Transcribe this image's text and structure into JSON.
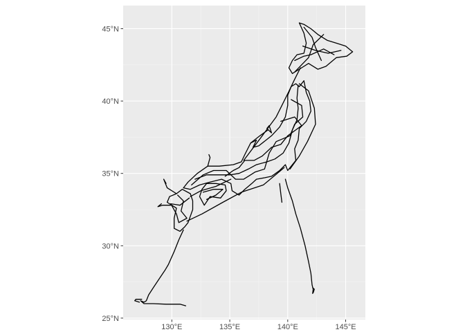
{
  "chart_data": {
    "type": "map",
    "title": "",
    "xlabel": "",
    "ylabel": "",
    "grid": true,
    "xlim": [
      125.8,
      146.7
    ],
    "ylim": [
      24.9,
      46.6
    ],
    "x_ticks": [
      {
        "value": 130,
        "label": "130°E"
      },
      {
        "value": 135,
        "label": "135°E"
      },
      {
        "value": 140,
        "label": "140°E"
      },
      {
        "value": 145,
        "label": "145°E"
      }
    ],
    "y_ticks": [
      {
        "value": 25,
        "label": "25°N"
      },
      {
        "value": 30,
        "label": "30°N"
      },
      {
        "value": 35,
        "label": "35°N"
      },
      {
        "value": 40,
        "label": "40°N"
      },
      {
        "value": 45,
        "label": "45°N"
      }
    ],
    "colors": {
      "panel": "#ebebeb",
      "grid_major": "#ffffff",
      "line": "#000000"
    },
    "series": [
      {
        "part": "hokkaido",
        "points": [
          [
            141.0,
            45.4
          ],
          [
            141.4,
            45.3
          ],
          [
            142.0,
            45.0
          ],
          [
            142.6,
            44.6
          ],
          [
            143.4,
            44.2
          ],
          [
            144.2,
            44.0
          ],
          [
            145.0,
            43.8
          ],
          [
            145.6,
            43.4
          ],
          [
            145.1,
            43.1
          ],
          [
            144.2,
            43.0
          ],
          [
            143.3,
            42.4
          ],
          [
            142.6,
            42.2
          ],
          [
            141.8,
            42.6
          ],
          [
            141.2,
            42.3
          ],
          [
            140.4,
            41.9
          ],
          [
            140.1,
            42.3
          ],
          [
            140.4,
            42.8
          ],
          [
            140.8,
            43.2
          ],
          [
            141.4,
            43.3
          ],
          [
            141.6,
            44.0
          ],
          [
            141.4,
            44.7
          ],
          [
            141.0,
            45.4
          ]
        ]
      },
      {
        "part": "hokkaido-inner-1",
        "points": [
          [
            141.3,
            43.8
          ],
          [
            142.4,
            43.5
          ],
          [
            143.5,
            43.3
          ],
          [
            144.6,
            43.5
          ]
        ]
      },
      {
        "part": "hokkaido-inner-2",
        "points": [
          [
            141.4,
            45.1
          ],
          [
            142.1,
            44.4
          ],
          [
            142.4,
            43.7
          ],
          [
            142.9,
            42.8
          ]
        ]
      },
      {
        "part": "hokkaido-inner-3",
        "points": [
          [
            140.6,
            42.8
          ],
          [
            141.4,
            43.1
          ],
          [
            142.0,
            43.2
          ],
          [
            143.1,
            43.6
          ],
          [
            144.0,
            43.2
          ]
        ]
      },
      {
        "part": "honshu-north-east-coast",
        "points": [
          [
            141.4,
            41.4
          ],
          [
            141.6,
            40.6
          ],
          [
            141.9,
            40.0
          ],
          [
            142.0,
            39.3
          ],
          [
            141.6,
            38.6
          ],
          [
            141.0,
            38.1
          ],
          [
            140.9,
            37.3
          ],
          [
            140.6,
            36.7
          ],
          [
            140.7,
            35.9
          ],
          [
            140.0,
            35.2
          ],
          [
            139.8,
            35.6
          ],
          [
            139.3,
            35.2
          ],
          [
            138.6,
            34.8
          ],
          [
            138.0,
            34.7
          ],
          [
            137.3,
            34.6
          ],
          [
            136.9,
            34.3
          ],
          [
            136.3,
            33.9
          ],
          [
            135.8,
            33.5
          ],
          [
            135.2,
            33.8
          ],
          [
            135.1,
            34.3
          ],
          [
            134.3,
            34.6
          ],
          [
            133.3,
            34.4
          ],
          [
            132.4,
            34.2
          ],
          [
            131.6,
            33.9
          ],
          [
            131.0,
            34.0
          ]
        ]
      },
      {
        "part": "honshu-west-coast",
        "points": [
          [
            131.0,
            34.0
          ],
          [
            131.4,
            34.4
          ],
          [
            132.2,
            35.0
          ],
          [
            133.1,
            35.5
          ],
          [
            134.1,
            35.5
          ],
          [
            135.3,
            35.6
          ],
          [
            136.0,
            35.8
          ],
          [
            136.3,
            36.3
          ],
          [
            136.8,
            37.1
          ],
          [
            137.3,
            37.3
          ],
          [
            137.0,
            36.8
          ],
          [
            137.5,
            36.9
          ],
          [
            138.6,
            37.6
          ],
          [
            139.3,
            38.2
          ],
          [
            139.8,
            38.9
          ],
          [
            140.0,
            39.7
          ],
          [
            140.0,
            40.4
          ],
          [
            140.3,
            41.0
          ],
          [
            140.7,
            41.2
          ],
          [
            141.0,
            41.0
          ],
          [
            141.4,
            41.4
          ]
        ]
      },
      {
        "part": "honshu-inner-1",
        "points": [
          [
            140.9,
            41.1
          ],
          [
            140.8,
            40.2
          ],
          [
            140.9,
            39.5
          ],
          [
            140.8,
            38.7
          ],
          [
            140.4,
            38.0
          ],
          [
            140.1,
            37.1
          ],
          [
            139.6,
            36.4
          ],
          [
            138.9,
            36.0
          ],
          [
            138.2,
            35.8
          ],
          [
            137.3,
            35.6
          ],
          [
            136.6,
            35.3
          ],
          [
            135.8,
            35.0
          ],
          [
            135.0,
            34.9
          ],
          [
            134.0,
            34.9
          ],
          [
            133.0,
            34.9
          ],
          [
            132.0,
            34.6
          ]
        ]
      },
      {
        "part": "honshu-inner-2",
        "points": [
          [
            140.3,
            40.1
          ],
          [
            141.2,
            39.7
          ],
          [
            141.3,
            38.9
          ],
          [
            140.6,
            38.4
          ],
          [
            140.2,
            37.6
          ],
          [
            139.0,
            37.2
          ],
          [
            138.4,
            36.4
          ],
          [
            138.0,
            35.3
          ],
          [
            137.2,
            35.1
          ],
          [
            136.2,
            34.6
          ],
          [
            135.5,
            34.6
          ],
          [
            134.7,
            35.2
          ],
          [
            133.6,
            35.2
          ],
          [
            132.7,
            34.9
          ],
          [
            131.7,
            34.2
          ]
        ]
      },
      {
        "part": "honshu-inner-3",
        "points": [
          [
            139.4,
            38.6
          ],
          [
            140.6,
            38.9
          ],
          [
            141.2,
            38.3
          ],
          [
            140.0,
            37.6
          ],
          [
            139.4,
            37.0
          ],
          [
            138.6,
            36.8
          ],
          [
            137.8,
            36.2
          ],
          [
            137.1,
            35.9
          ],
          [
            136.3,
            35.9
          ],
          [
            135.8,
            35.4
          ],
          [
            135.3,
            35.2
          ],
          [
            134.6,
            34.8
          ]
        ]
      },
      {
        "part": "shikoku",
        "points": [
          [
            132.6,
            33.9
          ],
          [
            133.0,
            34.3
          ],
          [
            133.8,
            34.3
          ],
          [
            134.6,
            34.2
          ],
          [
            134.7,
            33.8
          ],
          [
            134.2,
            33.3
          ],
          [
            133.3,
            33.4
          ],
          [
            132.8,
            32.8
          ],
          [
            132.4,
            33.4
          ],
          [
            132.6,
            33.9
          ]
        ]
      },
      {
        "part": "shikoku-inner",
        "points": [
          [
            132.7,
            33.7
          ],
          [
            133.6,
            33.9
          ],
          [
            134.4,
            33.9
          ],
          [
            133.8,
            33.5
          ],
          [
            133.0,
            33.2
          ]
        ]
      },
      {
        "part": "kyushu",
        "points": [
          [
            130.9,
            33.9
          ],
          [
            131.6,
            33.6
          ],
          [
            131.8,
            33.1
          ],
          [
            131.8,
            32.5
          ],
          [
            131.4,
            31.6
          ],
          [
            131.1,
            31.3
          ],
          [
            130.7,
            31.0
          ],
          [
            130.2,
            31.2
          ],
          [
            130.2,
            31.9
          ],
          [
            130.4,
            32.6
          ],
          [
            130.0,
            32.8
          ],
          [
            129.6,
            33.0
          ],
          [
            129.8,
            33.4
          ],
          [
            130.4,
            33.6
          ],
          [
            130.9,
            33.9
          ]
        ]
      },
      {
        "part": "kyushu-inner",
        "points": [
          [
            130.5,
            33.5
          ],
          [
            131.0,
            33.1
          ],
          [
            130.8,
            32.4
          ],
          [
            131.3,
            31.9
          ],
          [
            130.6,
            31.6
          ],
          [
            130.4,
            32.2
          ],
          [
            129.9,
            32.9
          ],
          [
            130.7,
            32.8
          ],
          [
            131.5,
            33.3
          ]
        ]
      },
      {
        "part": "okinawa-chain",
        "points": [
          [
            131.0,
            31.1
          ],
          [
            130.6,
            30.4
          ],
          [
            130.2,
            29.6
          ],
          [
            129.7,
            28.7
          ],
          [
            129.4,
            28.3
          ],
          [
            128.9,
            27.7
          ],
          [
            128.4,
            27.1
          ],
          [
            128.0,
            26.6
          ],
          [
            127.8,
            26.2
          ],
          [
            127.6,
            26.1
          ],
          [
            127.3,
            26.2
          ],
          [
            127.6,
            26.0
          ],
          [
            128.4,
            26.0
          ],
          [
            129.5,
            25.96
          ],
          [
            130.7,
            25.96
          ],
          [
            131.2,
            25.85
          ]
        ]
      },
      {
        "part": "western-islands",
        "points": [
          [
            127.2,
            26.1
          ],
          [
            126.8,
            26.2
          ],
          [
            126.9,
            26.3
          ],
          [
            127.4,
            26.3
          ]
        ]
      },
      {
        "part": "izu-chain",
        "points": [
          [
            139.8,
            34.6
          ],
          [
            140.0,
            34.0
          ],
          [
            140.4,
            33.1
          ],
          [
            140.7,
            32.2
          ],
          [
            141.1,
            31.2
          ],
          [
            141.5,
            30.0
          ],
          [
            141.8,
            28.9
          ],
          [
            142.0,
            28.1
          ],
          [
            142.1,
            27.3
          ],
          [
            142.2,
            27.0
          ],
          [
            142.15,
            26.7
          ]
        ]
      },
      {
        "part": "ogasawara-hook",
        "points": [
          [
            142.15,
            27.1
          ],
          [
            142.3,
            27.0
          ],
          [
            142.2,
            26.75
          ]
        ]
      },
      {
        "part": "izu-spur",
        "points": [
          [
            139.3,
            34.3
          ],
          [
            139.4,
            33.6
          ],
          [
            139.5,
            33.0
          ]
        ]
      },
      {
        "part": "ferry-sea-of-japan",
        "points": [
          [
            136.2,
            35.9
          ],
          [
            137.8,
            37.6
          ],
          [
            139.0,
            38.9
          ],
          [
            140.0,
            40.5
          ],
          [
            140.6,
            41.5
          ],
          [
            141.1,
            42.3
          ]
        ]
      },
      {
        "part": "ferry-pacific-east",
        "points": [
          [
            141.0,
            41.2
          ],
          [
            141.8,
            40.7
          ],
          [
            142.3,
            39.5
          ],
          [
            142.4,
            38.4
          ],
          [
            141.7,
            37.2
          ],
          [
            141.0,
            36.2
          ],
          [
            140.2,
            35.3
          ]
        ]
      },
      {
        "part": "ferry-pacific-north",
        "points": [
          [
            140.6,
            42.0
          ],
          [
            141.8,
            43.0
          ],
          [
            142.2,
            43.9
          ],
          [
            143.1,
            44.6
          ]
        ]
      },
      {
        "part": "ferry-pacific-south",
        "points": [
          [
            139.7,
            35.4
          ],
          [
            137.9,
            34.2
          ],
          [
            136.0,
            33.7
          ],
          [
            134.4,
            33.0
          ],
          [
            132.6,
            32.2
          ],
          [
            131.3,
            31.7
          ]
        ]
      },
      {
        "part": "ferry-inland-sea",
        "points": [
          [
            135.1,
            34.6
          ],
          [
            133.8,
            34.1
          ],
          [
            132.5,
            33.8
          ],
          [
            131.6,
            33.4
          ]
        ]
      },
      {
        "part": "ferry-tsushima",
        "points": [
          [
            130.4,
            33.6
          ],
          [
            129.6,
            34.0
          ],
          [
            129.3,
            34.6
          ],
          [
            129.5,
            34.3
          ]
        ]
      },
      {
        "part": "ferry-goto",
        "points": [
          [
            129.9,
            32.8
          ],
          [
            129.2,
            32.8
          ],
          [
            128.8,
            32.7
          ],
          [
            129.1,
            32.9
          ]
        ]
      },
      {
        "part": "ferry-noto",
        "points": [
          [
            136.8,
            37.1
          ],
          [
            137.6,
            37.6
          ],
          [
            138.3,
            38.0
          ]
        ]
      },
      {
        "part": "ferry-sado",
        "points": [
          [
            138.2,
            38.1
          ],
          [
            138.6,
            37.8
          ],
          [
            138.4,
            38.3
          ],
          [
            138.2,
            38.1
          ]
        ]
      },
      {
        "part": "ferry-oki",
        "points": [
          [
            133.1,
            35.5
          ],
          [
            133.3,
            36.1
          ],
          [
            133.2,
            36.3
          ]
        ]
      }
    ]
  }
}
